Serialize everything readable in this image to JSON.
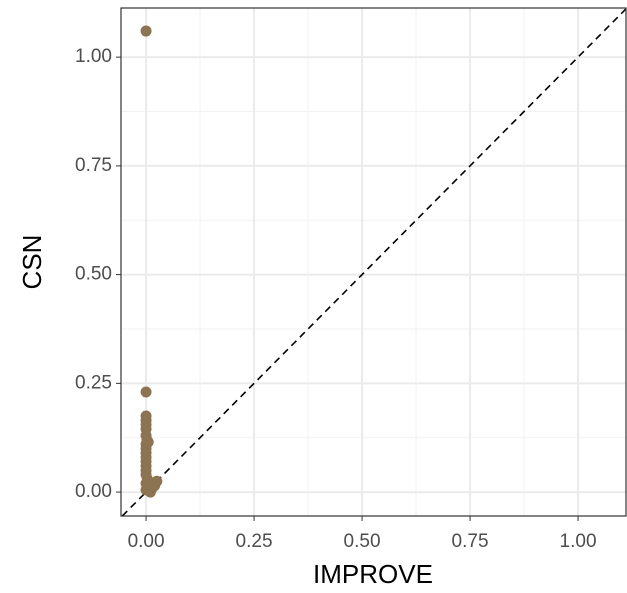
{
  "chart_data": {
    "type": "scatter",
    "x_label": "IMPROVE",
    "y_label": "CSN",
    "color": "#8c7352",
    "x": [
      0,
      0,
      0,
      0,
      0,
      0,
      0,
      0.002,
      0,
      0,
      0,
      0,
      0,
      0,
      0,
      0,
      0.003,
      0,
      0.005,
      0,
      0.01,
      0.015,
      0.02,
      0.025,
      0.02,
      0.005
    ],
    "y": [
      1.06,
      0.23,
      0.175,
      0.165,
      0.155,
      0.145,
      0.13,
      0.12,
      0.11,
      0.1,
      0.09,
      0.08,
      0.07,
      0.06,
      0.05,
      0.04,
      0.03,
      0.02,
      0.01,
      0.005,
      0,
      0.01,
      0.02,
      0.025,
      0.015,
      0.115
    ],
    "xlim": [
      -0.058,
      1.111
    ],
    "ylim": [
      -0.055,
      1.113
    ],
    "xticks": [
      {
        "value": 0,
        "label": "0.00"
      },
      0.25,
      {
        "value": 0.5,
        "label": "0.50"
      },
      0.75,
      {
        "value": 1,
        "label": "1.00"
      }
    ],
    "yticks": [
      {
        "value": 0,
        "label": "0.00"
      },
      0.25,
      {
        "value": 0.5,
        "label": "0.50"
      },
      0.75,
      {
        "value": 1,
        "label": "1.00"
      }
    ],
    "grid": true,
    "minor_grid": true,
    "identity_line": true
  }
}
